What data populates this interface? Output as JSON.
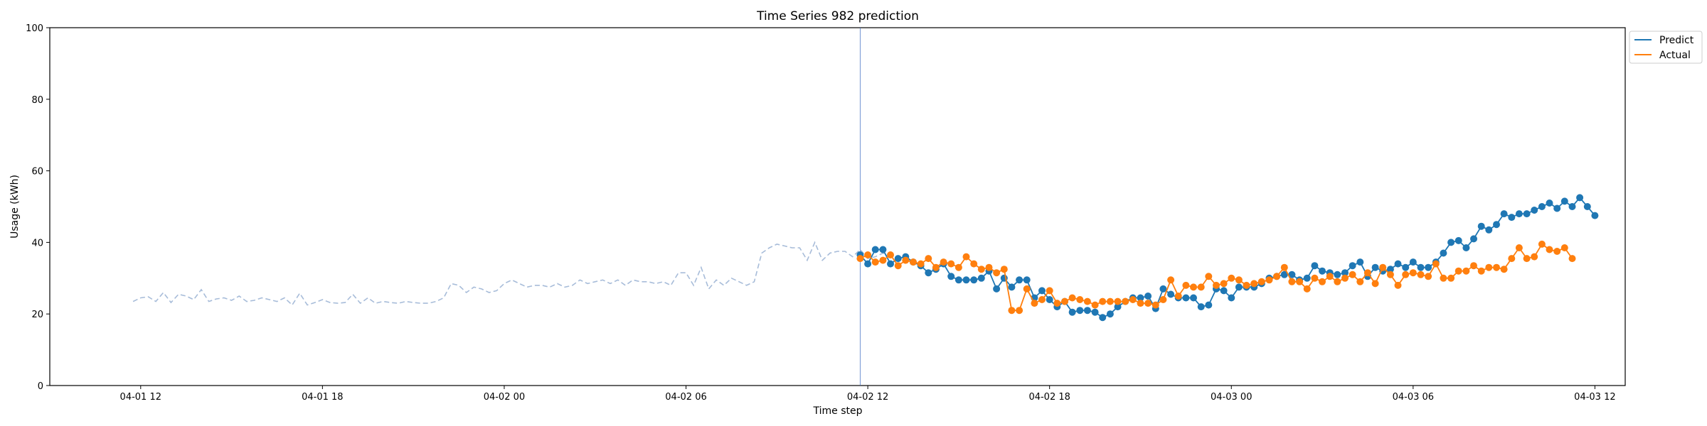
{
  "chart_data": {
    "type": "line",
    "title": "Time Series 982 prediction",
    "xlabel": "Time step",
    "ylabel": "Usage (kWh)",
    "ylim": [
      0,
      100
    ],
    "yticks": [
      0,
      20,
      40,
      60,
      80,
      100
    ],
    "xlim": [
      "2024-04-01 09:00",
      "2024-04-03 13:00"
    ],
    "xticks": [
      {
        "t": "2024-04-01 12:00",
        "label": "04-01 12"
      },
      {
        "t": "2024-04-01 18:00",
        "label": "04-01 18"
      },
      {
        "t": "2024-04-02 00:00",
        "label": "04-02 00"
      },
      {
        "t": "2024-04-02 06:00",
        "label": "04-02 06"
      },
      {
        "t": "2024-04-02 12:00",
        "label": "04-02 12"
      },
      {
        "t": "2024-04-02 18:00",
        "label": "04-02 18"
      },
      {
        "t": "2024-04-03 00:00",
        "label": "04-03 00"
      },
      {
        "t": "2024-04-03 06:00",
        "label": "04-03 06"
      },
      {
        "t": "2024-04-03 12:00",
        "label": "04-03 12"
      }
    ],
    "grid": false,
    "legend": {
      "placement": "upper right, outside plot",
      "entries": [
        "Predict",
        "Actual"
      ]
    },
    "forecast_start": "2024-04-02 11:45",
    "step_minutes": 15,
    "history": {
      "start": "2024-04-01 11:45",
      "color": "#a7bcd9",
      "style": "dashed",
      "values": [
        23.5,
        24.5,
        24.8,
        23.5,
        26,
        23.2,
        25.5,
        25,
        24,
        26.8,
        23.5,
        24.2,
        24.5,
        23.8,
        25,
        23.5,
        23.8,
        24.5,
        24,
        23.5,
        24.5,
        22.5,
        25.8,
        22.5,
        23.2,
        24,
        23.2,
        23,
        23.2,
        25.5,
        23,
        24.5,
        23,
        23.5,
        23.2,
        23,
        23.5,
        23.2,
        23,
        23,
        23.5,
        24.5,
        28.5,
        28,
        26,
        27.5,
        27,
        26,
        26.5,
        28.5,
        29.5,
        28.5,
        27.5,
        28,
        28,
        27.5,
        28.5,
        27.5,
        28,
        29.5,
        28.5,
        29,
        29.5,
        28.5,
        29.5,
        28,
        29.5,
        29,
        29,
        28.5,
        29,
        28,
        31.5,
        31.5,
        28,
        33,
        27,
        29.5,
        28,
        30,
        29,
        28,
        29,
        37,
        38.5,
        39.5,
        39,
        38.5,
        38.5,
        35,
        40,
        35,
        37,
        37.5,
        37.5,
        36,
        38,
        35.5,
        36,
        37,
        36
      ]
    },
    "series": [
      {
        "name": "Predict",
        "color": "#1f77b4",
        "start": "2024-04-02 11:45",
        "values": [
          36.5,
          34,
          38,
          38,
          34,
          35.5,
          36,
          34.5,
          33.5,
          31.5,
          32.5,
          34,
          30.5,
          29.5,
          29.5,
          29.5,
          30,
          32,
          27,
          30,
          27.5,
          29.5,
          29.5,
          24.5,
          26.5,
          24,
          22,
          23.5,
          20.5,
          21,
          21,
          20.5,
          19,
          20,
          22,
          23.5,
          24.5,
          24.5,
          25,
          21.5,
          27,
          25.5,
          24.5,
          24.5,
          24.5,
          22,
          22.5,
          27,
          26.5,
          24.5,
          27.5,
          27.5,
          27.5,
          28.5,
          30,
          30.5,
          31,
          31,
          29.5,
          30,
          33.5,
          32,
          31.5,
          31,
          31.5,
          33.5,
          34.5,
          30.5,
          33,
          32,
          32.5,
          34,
          33,
          34.5,
          33,
          33,
          34.5,
          37,
          40,
          40.5,
          38.5,
          41,
          44.5,
          43.5,
          45,
          48,
          47,
          48,
          48,
          49,
          50,
          51,
          49.5,
          51.5,
          50,
          52.5,
          50,
          47.5
        ]
      },
      {
        "name": "Actual",
        "color": "#ff7f0e",
        "start": "2024-04-02 11:45",
        "values": [
          35.5,
          36.5,
          34.5,
          35,
          36.5,
          33.5,
          35,
          34.5,
          34,
          35.5,
          33,
          34.5,
          34,
          33,
          36,
          34,
          32.5,
          33,
          31.5,
          32.5,
          21,
          21,
          27,
          23,
          24,
          26.5,
          23,
          23.5,
          24.5,
          24,
          23.5,
          22.5,
          23.5,
          23.5,
          23.5,
          23.5,
          24,
          23,
          23,
          22.5,
          24,
          29.5,
          25,
          28,
          27.5,
          27.5,
          30.5,
          28,
          28.5,
          30,
          29.5,
          28,
          28.5,
          29,
          29.5,
          30.5,
          33,
          29,
          29,
          27,
          30,
          29,
          30.5,
          29,
          30,
          31,
          29,
          31.5,
          28.5,
          33,
          31,
          28,
          31,
          31.5,
          31,
          30.5,
          34,
          30,
          30,
          32,
          32,
          33.5,
          32,
          33,
          33,
          32.5,
          35.5,
          38.5,
          35.5,
          36,
          39.5,
          38,
          37.5,
          38.5,
          35.5
        ]
      }
    ]
  }
}
